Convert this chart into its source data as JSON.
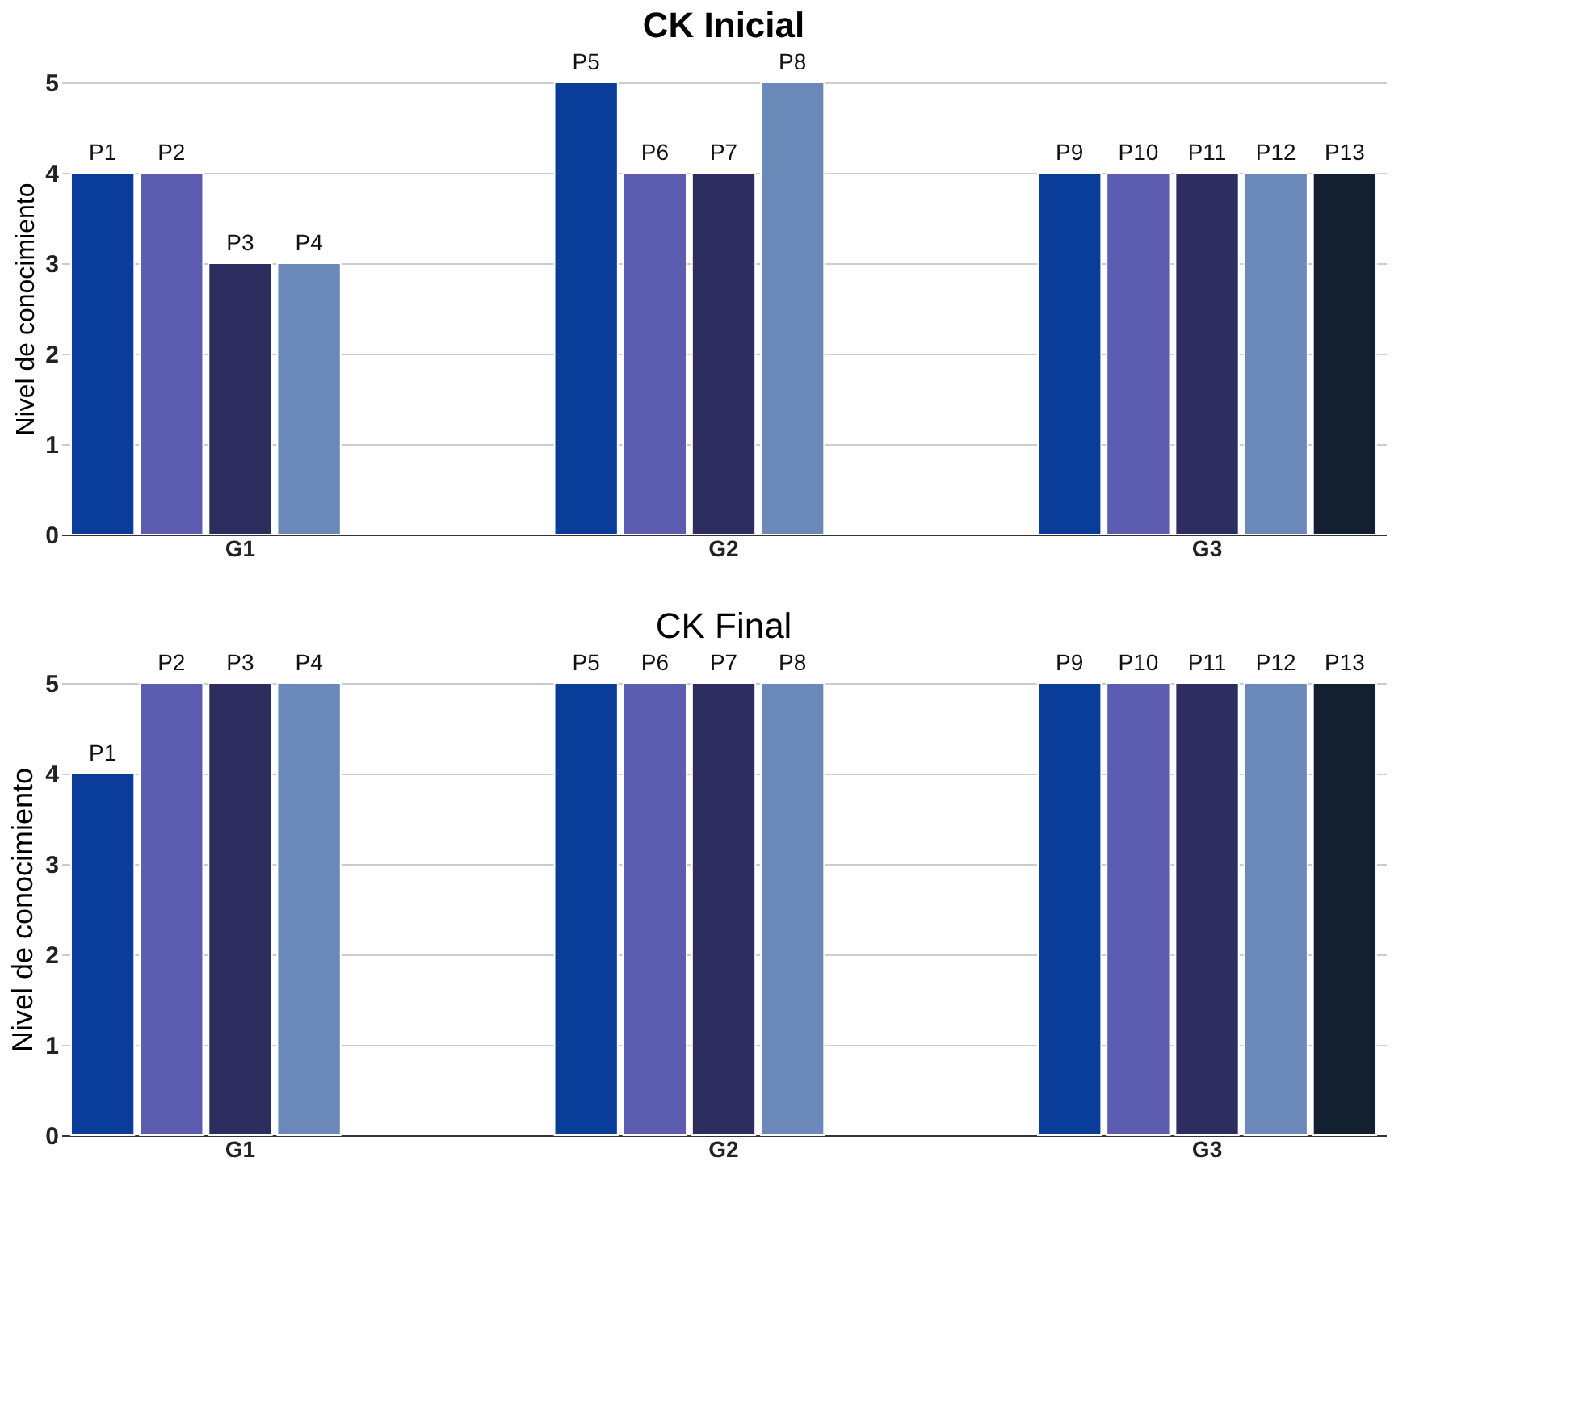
{
  "chart_data": [
    {
      "type": "bar",
      "title": "CK Inicial",
      "categories": [
        "G1",
        "G2",
        "G3"
      ],
      "ylabel": "Nivel de conocimiento",
      "ylim": [
        0,
        5
      ],
      "yticks": [
        0,
        1,
        2,
        3,
        4,
        5
      ],
      "grid": "y",
      "legend": false,
      "series": [
        {
          "name": "P1",
          "color": "#0a3d9a",
          "values": [
            4,
            null,
            null
          ]
        },
        {
          "name": "P2",
          "color": "#5c5cb0",
          "values": [
            4,
            null,
            null
          ]
        },
        {
          "name": "P3",
          "color": "#2e2d60",
          "values": [
            3,
            null,
            null
          ]
        },
        {
          "name": "P4",
          "color": "#6a88b8",
          "values": [
            3,
            null,
            null
          ]
        },
        {
          "name": "P5",
          "color": "#0a3d9a",
          "values": [
            null,
            5,
            null
          ]
        },
        {
          "name": "P6",
          "color": "#5c5cb0",
          "values": [
            null,
            4,
            null
          ]
        },
        {
          "name": "P7",
          "color": "#2e2d60",
          "values": [
            null,
            4,
            null
          ]
        },
        {
          "name": "P8",
          "color": "#6a88b8",
          "values": [
            null,
            5,
            null
          ]
        },
        {
          "name": "P9",
          "color": "#0a3d9a",
          "values": [
            null,
            null,
            4
          ]
        },
        {
          "name": "P10",
          "color": "#5c5cb0",
          "values": [
            null,
            null,
            4
          ]
        },
        {
          "name": "P11",
          "color": "#2e2d60",
          "values": [
            null,
            null,
            4
          ]
        },
        {
          "name": "P12",
          "color": "#6a88b8",
          "values": [
            null,
            null,
            4
          ]
        },
        {
          "name": "P13",
          "color": "#13202f",
          "values": [
            null,
            null,
            4
          ]
        }
      ]
    },
    {
      "type": "bar",
      "title": "CK Final",
      "categories": [
        "G1",
        "G2",
        "G3"
      ],
      "ylabel": "Nivel de conocimiento",
      "ylim": [
        0,
        5
      ],
      "yticks": [
        0,
        1,
        2,
        3,
        4,
        5
      ],
      "grid": "y",
      "legend": false,
      "series": [
        {
          "name": "P1",
          "color": "#0a3d9a",
          "values": [
            4,
            null,
            null
          ]
        },
        {
          "name": "P2",
          "color": "#5c5cb0",
          "values": [
            5,
            null,
            null
          ]
        },
        {
          "name": "P3",
          "color": "#2e2d60",
          "values": [
            5,
            null,
            null
          ]
        },
        {
          "name": "P4",
          "color": "#6a88b8",
          "values": [
            5,
            null,
            null
          ]
        },
        {
          "name": "P5",
          "color": "#0a3d9a",
          "values": [
            null,
            5,
            null
          ]
        },
        {
          "name": "P6",
          "color": "#5c5cb0",
          "values": [
            null,
            5,
            null
          ]
        },
        {
          "name": "P7",
          "color": "#2e2d60",
          "values": [
            null,
            5,
            null
          ]
        },
        {
          "name": "P8",
          "color": "#6a88b8",
          "values": [
            null,
            5,
            null
          ]
        },
        {
          "name": "P9",
          "color": "#0a3d9a",
          "values": [
            null,
            null,
            5
          ]
        },
        {
          "name": "P10",
          "color": "#5c5cb0",
          "values": [
            null,
            null,
            5
          ]
        },
        {
          "name": "P11",
          "color": "#2e2d60",
          "values": [
            null,
            null,
            5
          ]
        },
        {
          "name": "P12",
          "color": "#6a88b8",
          "values": [
            null,
            null,
            5
          ]
        },
        {
          "name": "P13",
          "color": "#13202f",
          "values": [
            null,
            null,
            5
          ]
        }
      ]
    }
  ]
}
